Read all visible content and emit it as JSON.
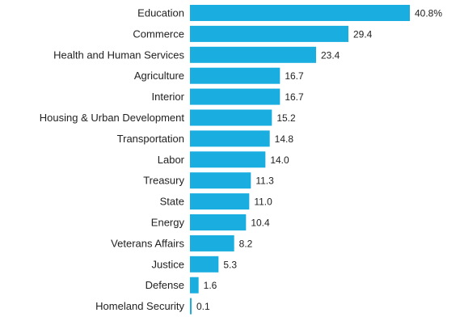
{
  "chart_data": {
    "type": "bar",
    "orientation": "horizontal",
    "categories": [
      "Education",
      "Commerce",
      "Health and Human Services",
      "Agriculture",
      "Interior",
      "Housing & Urban Development",
      "Transportation",
      "Labor",
      "Treasury",
      "State",
      "Energy",
      "Veterans Affairs",
      "Justice",
      "Defense",
      "Homeland Security"
    ],
    "values": [
      40.8,
      29.4,
      23.4,
      16.7,
      16.7,
      15.2,
      14.8,
      14.0,
      11.3,
      11.0,
      10.4,
      8.2,
      5.3,
      1.6,
      0.1
    ],
    "value_labels": [
      "40.8%",
      "29.4",
      "23.4",
      "16.7",
      "16.7",
      "15.2",
      "14.8",
      "14.0",
      "11.3",
      "11.0",
      "10.4",
      "8.2",
      "5.3",
      "1.6",
      "0.1"
    ],
    "title": "",
    "xlabel": "",
    "ylabel": "",
    "xlim": [
      0,
      40.8
    ],
    "grid": false,
    "legend": "none",
    "bar_color": "#1aaee0"
  }
}
